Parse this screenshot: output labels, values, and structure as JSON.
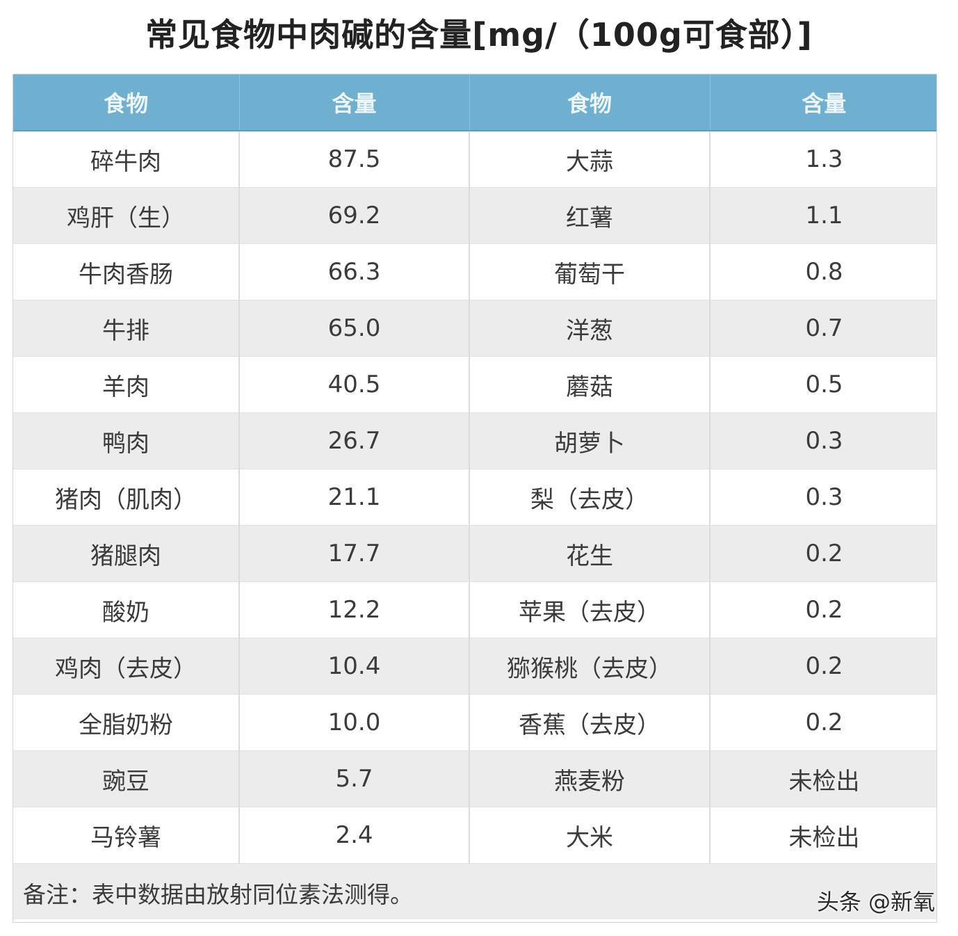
{
  "title": "常见食物中肉碱的含量[mg/（100g可食部）]",
  "table": {
    "headers": [
      "食物",
      "含量",
      "食物",
      "含量"
    ],
    "rows": [
      [
        "碎牛肉",
        "87.5",
        "大蒜",
        "1.3"
      ],
      [
        "鸡肝（生）",
        "69.2",
        "红薯",
        "1.1"
      ],
      [
        "牛肉香肠",
        "66.3",
        "葡萄干",
        "0.8"
      ],
      [
        "牛排",
        "65.0",
        "洋葱",
        "0.7"
      ],
      [
        "羊肉",
        "40.5",
        "蘑菇",
        "0.5"
      ],
      [
        "鸭肉",
        "26.7",
        "胡萝卜",
        "0.3"
      ],
      [
        "猪肉（肌肉）",
        "21.1",
        "梨（去皮）",
        "0.3"
      ],
      [
        "猪腿肉",
        "17.7",
        "花生",
        "0.2"
      ],
      [
        "酸奶",
        "12.2",
        "苹果（去皮）",
        "0.2"
      ],
      [
        "鸡肉（去皮）",
        "10.4",
        "猕猴桃（去皮）",
        "0.2"
      ],
      [
        "全脂奶粉",
        "10.0",
        "香蕉（去皮）",
        "0.2"
      ],
      [
        "豌豆",
        "5.7",
        "燕麦粉",
        "未检出"
      ],
      [
        "马铃薯",
        "2.4",
        "大米",
        "未检出"
      ]
    ]
  },
  "note": "备注：表中数据由放射同位素法测得。",
  "watermark": "头条 @新氧",
  "colors": {
    "header_bg": "#6fb0d1",
    "stripe_bg": "#ececec"
  }
}
